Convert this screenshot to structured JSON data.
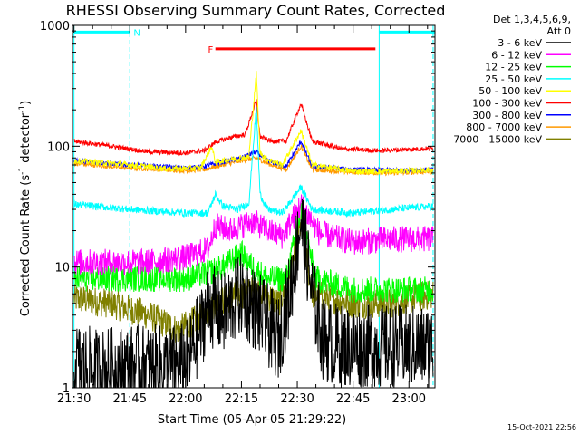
{
  "chart_data": {
    "type": "line",
    "title": "RHESSI Observing Summary Count Rates, Corrected",
    "xlabel": "Start Time (05-Apr-05 21:29:22)",
    "ylabel_main": "Corrected Count Rate (s",
    "ylabel_sup1": "-1",
    "ylabel_mid": " detector",
    "ylabel_sup2": "-1",
    "ylabel_end": ")",
    "y_scale": "log",
    "ylim": [
      1,
      1000
    ],
    "xlim_minutes": [
      -0.4,
      97
    ],
    "x_ticks": [
      {
        "m": 0,
        "label": "21:30"
      },
      {
        "m": 15,
        "label": "21:45"
      },
      {
        "m": 30,
        "label": "22:00"
      },
      {
        "m": 45,
        "label": "22:15"
      },
      {
        "m": 60,
        "label": "22:30"
      },
      {
        "m": 75,
        "label": "22:45"
      },
      {
        "m": 90,
        "label": "23:00"
      }
    ],
    "y_ticks": [
      {
        "v": 1,
        "label": "1"
      },
      {
        "v": 10,
        "label": "10"
      },
      {
        "v": 100,
        "label": "100"
      },
      {
        "v": 1000,
        "label": "1000"
      }
    ],
    "det_label": "Det 1,3,4,5,6,9,",
    "att_label": "Att 0",
    "timestamp": "15-Oct-2021 22:56",
    "flags": [
      {
        "label": "N",
        "color": "#00ffff",
        "segments": [
          [
            0,
            15
          ],
          [
            82,
            97
          ]
        ],
        "label_at": 16,
        "level": 880
      },
      {
        "label": "F",
        "color": "#ff0000",
        "segments": [
          [
            38,
            81
          ]
        ],
        "label_at": 36,
        "level": 640
      }
    ],
    "vlines": [
      {
        "m": 0,
        "color": "#00ffff",
        "style": "solid"
      },
      {
        "m": 15,
        "color": "#00ffff",
        "style": "dash"
      },
      {
        "m": 82,
        "color": "#00ffff",
        "style": "solid"
      },
      {
        "m": 96.5,
        "color": "#00ffff",
        "style": "dash"
      }
    ],
    "series": [
      {
        "name": "3 - 6 keV",
        "color": "#000000",
        "noise": 0.7,
        "points": [
          [
            0,
            1.6
          ],
          [
            6,
            1.4
          ],
          [
            15,
            1.5
          ],
          [
            25,
            1.5
          ],
          [
            30,
            1.6
          ],
          [
            34,
            3
          ],
          [
            36,
            5
          ],
          [
            40,
            4
          ],
          [
            45,
            6
          ],
          [
            50,
            4
          ],
          [
            55,
            2.5
          ],
          [
            58,
            6
          ],
          [
            61,
            25
          ],
          [
            64,
            6
          ],
          [
            67,
            2.5
          ],
          [
            72,
            2.2
          ],
          [
            80,
            2.2
          ],
          [
            97,
            2.2
          ]
        ]
      },
      {
        "name": "6 - 12 keV",
        "color": "#ff00ff",
        "noise": 0.22,
        "points": [
          [
            0,
            11
          ],
          [
            10,
            11
          ],
          [
            20,
            11
          ],
          [
            30,
            12
          ],
          [
            36,
            14
          ],
          [
            38,
            22
          ],
          [
            42,
            20
          ],
          [
            48,
            24
          ],
          [
            52,
            20
          ],
          [
            56,
            18
          ],
          [
            61,
            33
          ],
          [
            66,
            19
          ],
          [
            75,
            16
          ],
          [
            85,
            17
          ],
          [
            97,
            17
          ]
        ]
      },
      {
        "name": "12 - 25 keV",
        "color": "#00ff00",
        "noise": 0.22,
        "points": [
          [
            0,
            8
          ],
          [
            10,
            8
          ],
          [
            20,
            8
          ],
          [
            30,
            8
          ],
          [
            36,
            9
          ],
          [
            40,
            10
          ],
          [
            45,
            13
          ],
          [
            48,
            10
          ],
          [
            52,
            8
          ],
          [
            57,
            8
          ],
          [
            61,
            28
          ],
          [
            65,
            8
          ],
          [
            75,
            6.5
          ],
          [
            85,
            6.5
          ],
          [
            97,
            6.5
          ]
        ]
      },
      {
        "name": "25 - 50 keV",
        "color": "#00ffff",
        "noise": 0.06,
        "points": [
          [
            0,
            33
          ],
          [
            15,
            30
          ],
          [
            30,
            28
          ],
          [
            36,
            28
          ],
          [
            38,
            40
          ],
          [
            40,
            32
          ],
          [
            44,
            30
          ],
          [
            47,
            34
          ],
          [
            49,
            210
          ],
          [
            50,
            40
          ],
          [
            52,
            30
          ],
          [
            56,
            28
          ],
          [
            61,
            46
          ],
          [
            64,
            30
          ],
          [
            75,
            28
          ],
          [
            85,
            30
          ],
          [
            97,
            32
          ]
        ]
      },
      {
        "name": "50 - 100 keV",
        "color": "#ffff00",
        "noise": 0.05,
        "points": [
          [
            0,
            76
          ],
          [
            15,
            70
          ],
          [
            25,
            65
          ],
          [
            34,
            66
          ],
          [
            37,
            100
          ],
          [
            38,
            74
          ],
          [
            42,
            78
          ],
          [
            47,
            82
          ],
          [
            49,
            400
          ],
          [
            50,
            88
          ],
          [
            52,
            78
          ],
          [
            56,
            70
          ],
          [
            61,
            135
          ],
          [
            64,
            70
          ],
          [
            75,
            62
          ],
          [
            85,
            62
          ],
          [
            97,
            64
          ]
        ]
      },
      {
        "name": "100 - 300 keV",
        "color": "#ff0000",
        "noise": 0.04,
        "points": [
          [
            0,
            110
          ],
          [
            10,
            100
          ],
          [
            20,
            90
          ],
          [
            30,
            88
          ],
          [
            35,
            92
          ],
          [
            38,
            108
          ],
          [
            42,
            118
          ],
          [
            46,
            125
          ],
          [
            49,
            240
          ],
          [
            50,
            120
          ],
          [
            53,
            110
          ],
          [
            57,
            110
          ],
          [
            61,
            225
          ],
          [
            64,
            110
          ],
          [
            72,
            95
          ],
          [
            82,
            92
          ],
          [
            97,
            96
          ]
        ]
      },
      {
        "name": "300 - 800 keV",
        "color": "#0000ff",
        "noise": 0.04,
        "points": [
          [
            0,
            76
          ],
          [
            15,
            70
          ],
          [
            30,
            66
          ],
          [
            35,
            68
          ],
          [
            38,
            72
          ],
          [
            45,
            80
          ],
          [
            49,
            90
          ],
          [
            52,
            76
          ],
          [
            57,
            68
          ],
          [
            61,
            110
          ],
          [
            64,
            68
          ],
          [
            75,
            64
          ],
          [
            85,
            63
          ],
          [
            97,
            64
          ]
        ]
      },
      {
        "name": "800 - 7000 keV",
        "color": "#ff9900",
        "noise": 0.04,
        "points": [
          [
            0,
            72
          ],
          [
            15,
            66
          ],
          [
            30,
            63
          ],
          [
            35,
            64
          ],
          [
            38,
            68
          ],
          [
            45,
            76
          ],
          [
            49,
            80
          ],
          [
            52,
            72
          ],
          [
            57,
            64
          ],
          [
            61,
            100
          ],
          [
            64,
            64
          ],
          [
            75,
            61
          ],
          [
            85,
            60
          ],
          [
            97,
            62
          ]
        ]
      },
      {
        "name": "7000 - 15000 keV",
        "color": "#808000",
        "noise": 0.25,
        "points": [
          [
            0,
            5.5
          ],
          [
            10,
            5
          ],
          [
            20,
            4
          ],
          [
            28,
            3
          ],
          [
            35,
            4
          ],
          [
            38,
            5
          ],
          [
            45,
            6
          ],
          [
            50,
            6.5
          ],
          [
            55,
            5
          ],
          [
            58,
            8
          ],
          [
            61,
            23
          ],
          [
            64,
            6
          ],
          [
            75,
            5
          ],
          [
            85,
            5
          ],
          [
            97,
            6
          ]
        ]
      }
    ]
  }
}
